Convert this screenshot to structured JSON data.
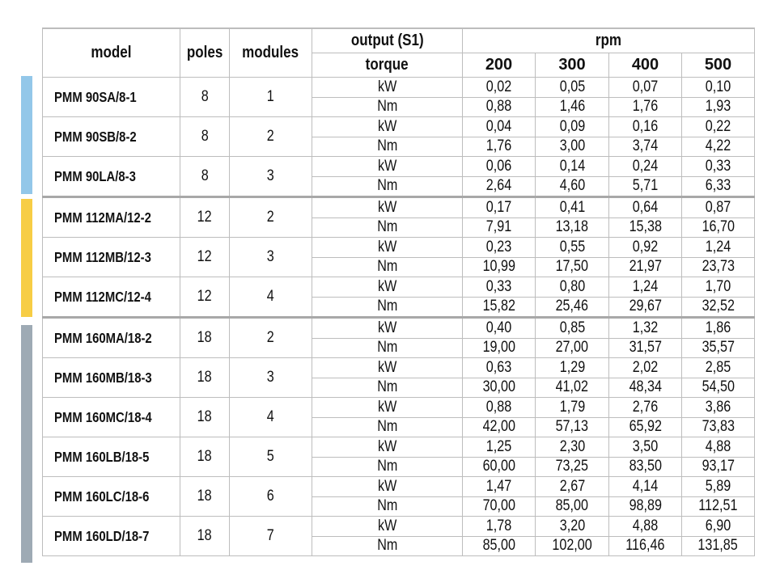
{
  "group_colors": [
    "#93c7e9",
    "#f7cd45",
    "#9eaab4"
  ],
  "header": {
    "model": "model",
    "poles": "poles",
    "modules": "modules",
    "output": "output (S1)",
    "torque": "torque",
    "rpm": "rpm",
    "speeds": [
      "200",
      "300",
      "400",
      "500"
    ]
  },
  "units": {
    "power": "kW",
    "torque": "Nm"
  },
  "rows": [
    {
      "group": 0,
      "model": "PMM 90SA/8-1",
      "poles": "8",
      "modules": "1",
      "kW": [
        "0,02",
        "0,05",
        "0,07",
        "0,10"
      ],
      "Nm": [
        "0,88",
        "1,46",
        "1,76",
        "1,93"
      ]
    },
    {
      "group": 0,
      "model": "PMM 90SB/8-2",
      "poles": "8",
      "modules": "2",
      "kW": [
        "0,04",
        "0,09",
        "0,16",
        "0,22"
      ],
      "Nm": [
        "1,76",
        "3,00",
        "3,74",
        "4,22"
      ]
    },
    {
      "group": 0,
      "model": "PMM 90LA/8-3",
      "poles": "8",
      "modules": "3",
      "kW": [
        "0,06",
        "0,14",
        "0,24",
        "0,33"
      ],
      "Nm": [
        "2,64",
        "4,60",
        "5,71",
        "6,33"
      ]
    },
    {
      "group": 1,
      "model": "PMM 112MA/12-2",
      "poles": "12",
      "modules": "2",
      "kW": [
        "0,17",
        "0,41",
        "0,64",
        "0,87"
      ],
      "Nm": [
        "7,91",
        "13,18",
        "15,38",
        "16,70"
      ]
    },
    {
      "group": 1,
      "model": "PMM 112MB/12-3",
      "poles": "12",
      "modules": "3",
      "kW": [
        "0,23",
        "0,55",
        "0,92",
        "1,24"
      ],
      "Nm": [
        "10,99",
        "17,50",
        "21,97",
        "23,73"
      ]
    },
    {
      "group": 1,
      "model": "PMM 112MC/12-4",
      "poles": "12",
      "modules": "4",
      "kW": [
        "0,33",
        "0,80",
        "1,24",
        "1,70"
      ],
      "Nm": [
        "15,82",
        "25,46",
        "29,67",
        "32,52"
      ]
    },
    {
      "group": 2,
      "model": "PMM 160MA/18-2",
      "poles": "18",
      "modules": "2",
      "kW": [
        "0,40",
        "0,85",
        "1,32",
        "1,86"
      ],
      "Nm": [
        "19,00",
        "27,00",
        "31,57",
        "35,57"
      ]
    },
    {
      "group": 2,
      "model": "PMM 160MB/18-3",
      "poles": "18",
      "modules": "3",
      "kW": [
        "0,63",
        "1,29",
        "2,02",
        "2,85"
      ],
      "Nm": [
        "30,00",
        "41,02",
        "48,34",
        "54,50"
      ]
    },
    {
      "group": 2,
      "model": "PMM 160MC/18-4",
      "poles": "18",
      "modules": "4",
      "kW": [
        "0,88",
        "1,79",
        "2,76",
        "3,86"
      ],
      "Nm": [
        "42,00",
        "57,13",
        "65,92",
        "73,83"
      ]
    },
    {
      "group": 2,
      "model": "PMM 160LB/18-5",
      "poles": "18",
      "modules": "5",
      "kW": [
        "1,25",
        "2,30",
        "3,50",
        "4,88"
      ],
      "Nm": [
        "60,00",
        "73,25",
        "83,50",
        "93,17"
      ]
    },
    {
      "group": 2,
      "model": "PMM 160LC/18-6",
      "poles": "18",
      "modules": "6",
      "kW": [
        "1,47",
        "2,67",
        "4,14",
        "5,89"
      ],
      "Nm": [
        "70,00",
        "85,00",
        "98,89",
        "112,51"
      ]
    },
    {
      "group": 2,
      "model": "PMM 160LD/18-7",
      "poles": "18",
      "modules": "7",
      "kW": [
        "1,78",
        "3,20",
        "4,88",
        "6,90"
      ],
      "Nm": [
        "85,00",
        "102,00",
        "116,46",
        "131,85"
      ]
    }
  ]
}
